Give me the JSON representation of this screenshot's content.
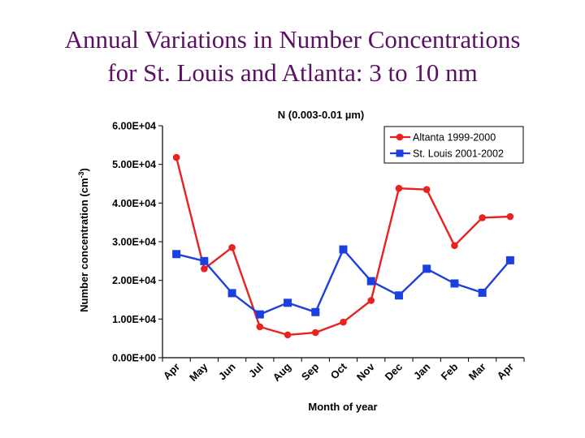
{
  "slide": {
    "title_line1": "Annual Variations in Number Concentrations",
    "title_line2": "for St. Louis and Atlanta: 3 to 10 nm"
  },
  "chart_data": {
    "type": "line",
    "title": "N (0.003-0.01 µm)",
    "xlabel": "Month of year",
    "ylabel": "Number concentration (cm",
    "ylabel_superscript": "-3",
    "ylabel_close": ")",
    "ylim": [
      0,
      60000
    ],
    "yticks": [
      0,
      10000,
      20000,
      30000,
      40000,
      50000,
      60000
    ],
    "ytick_labels": [
      "0.00E+00",
      "1.00E+04",
      "2.00E+04",
      "3.00E+04",
      "4.00E+04",
      "5.00E+04",
      "6.00E+04"
    ],
    "categories": [
      "Apr",
      "May",
      "Jun",
      "Jul",
      "Aug",
      "Sep",
      "Oct",
      "Nov",
      "Dec",
      "Jan",
      "Feb",
      "Mar",
      "Apr"
    ],
    "legend_position": "top-right",
    "grid": false,
    "series": [
      {
        "name": "Altanta 1999-2000",
        "color": "#e8231f",
        "marker": "circle",
        "x": [
          0,
          1,
          2,
          3,
          4,
          5,
          6,
          7,
          8,
          9,
          10,
          11,
          12
        ],
        "values": [
          51800,
          23000,
          28500,
          8000,
          5900,
          6500,
          9200,
          14800,
          43800,
          43500,
          29000,
          36200,
          36500
        ]
      },
      {
        "name": "St. Louis 2001-2002",
        "color": "#1c3fe0",
        "marker": "square",
        "x": [
          0,
          1,
          2,
          3,
          4,
          5,
          6,
          7,
          8,
          9,
          10,
          11,
          12
        ],
        "values": [
          26800,
          25000,
          16700,
          11200,
          14200,
          11800,
          28000,
          19800,
          16100,
          23000,
          19200,
          16800,
          25200
        ]
      }
    ]
  }
}
